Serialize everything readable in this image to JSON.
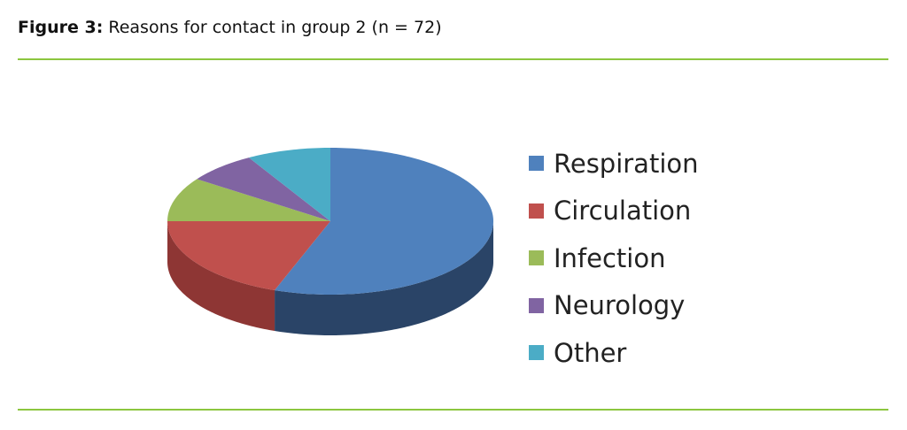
{
  "figure_label": "Figure 3:",
  "figure_caption": "Reasons for contact in group 2 (n = 72)",
  "rule_color": "#8cc63f",
  "chart_data": {
    "type": "pie",
    "style": "3d",
    "title": "",
    "total": 72,
    "legend_position": "right",
    "categories": [
      "Respiration",
      "Circulation",
      "Infection",
      "Neurology",
      "Other"
    ],
    "values": [
      40,
      14,
      7,
      5,
      6
    ],
    "colors": [
      "#4f81bd",
      "#c0504d",
      "#9bbb59",
      "#8064a2",
      "#4bacc6"
    ],
    "side_colors": [
      "#2a4467",
      "#8e3634",
      "#6f8a3c",
      "#5a4674",
      "#327c8e"
    ]
  }
}
